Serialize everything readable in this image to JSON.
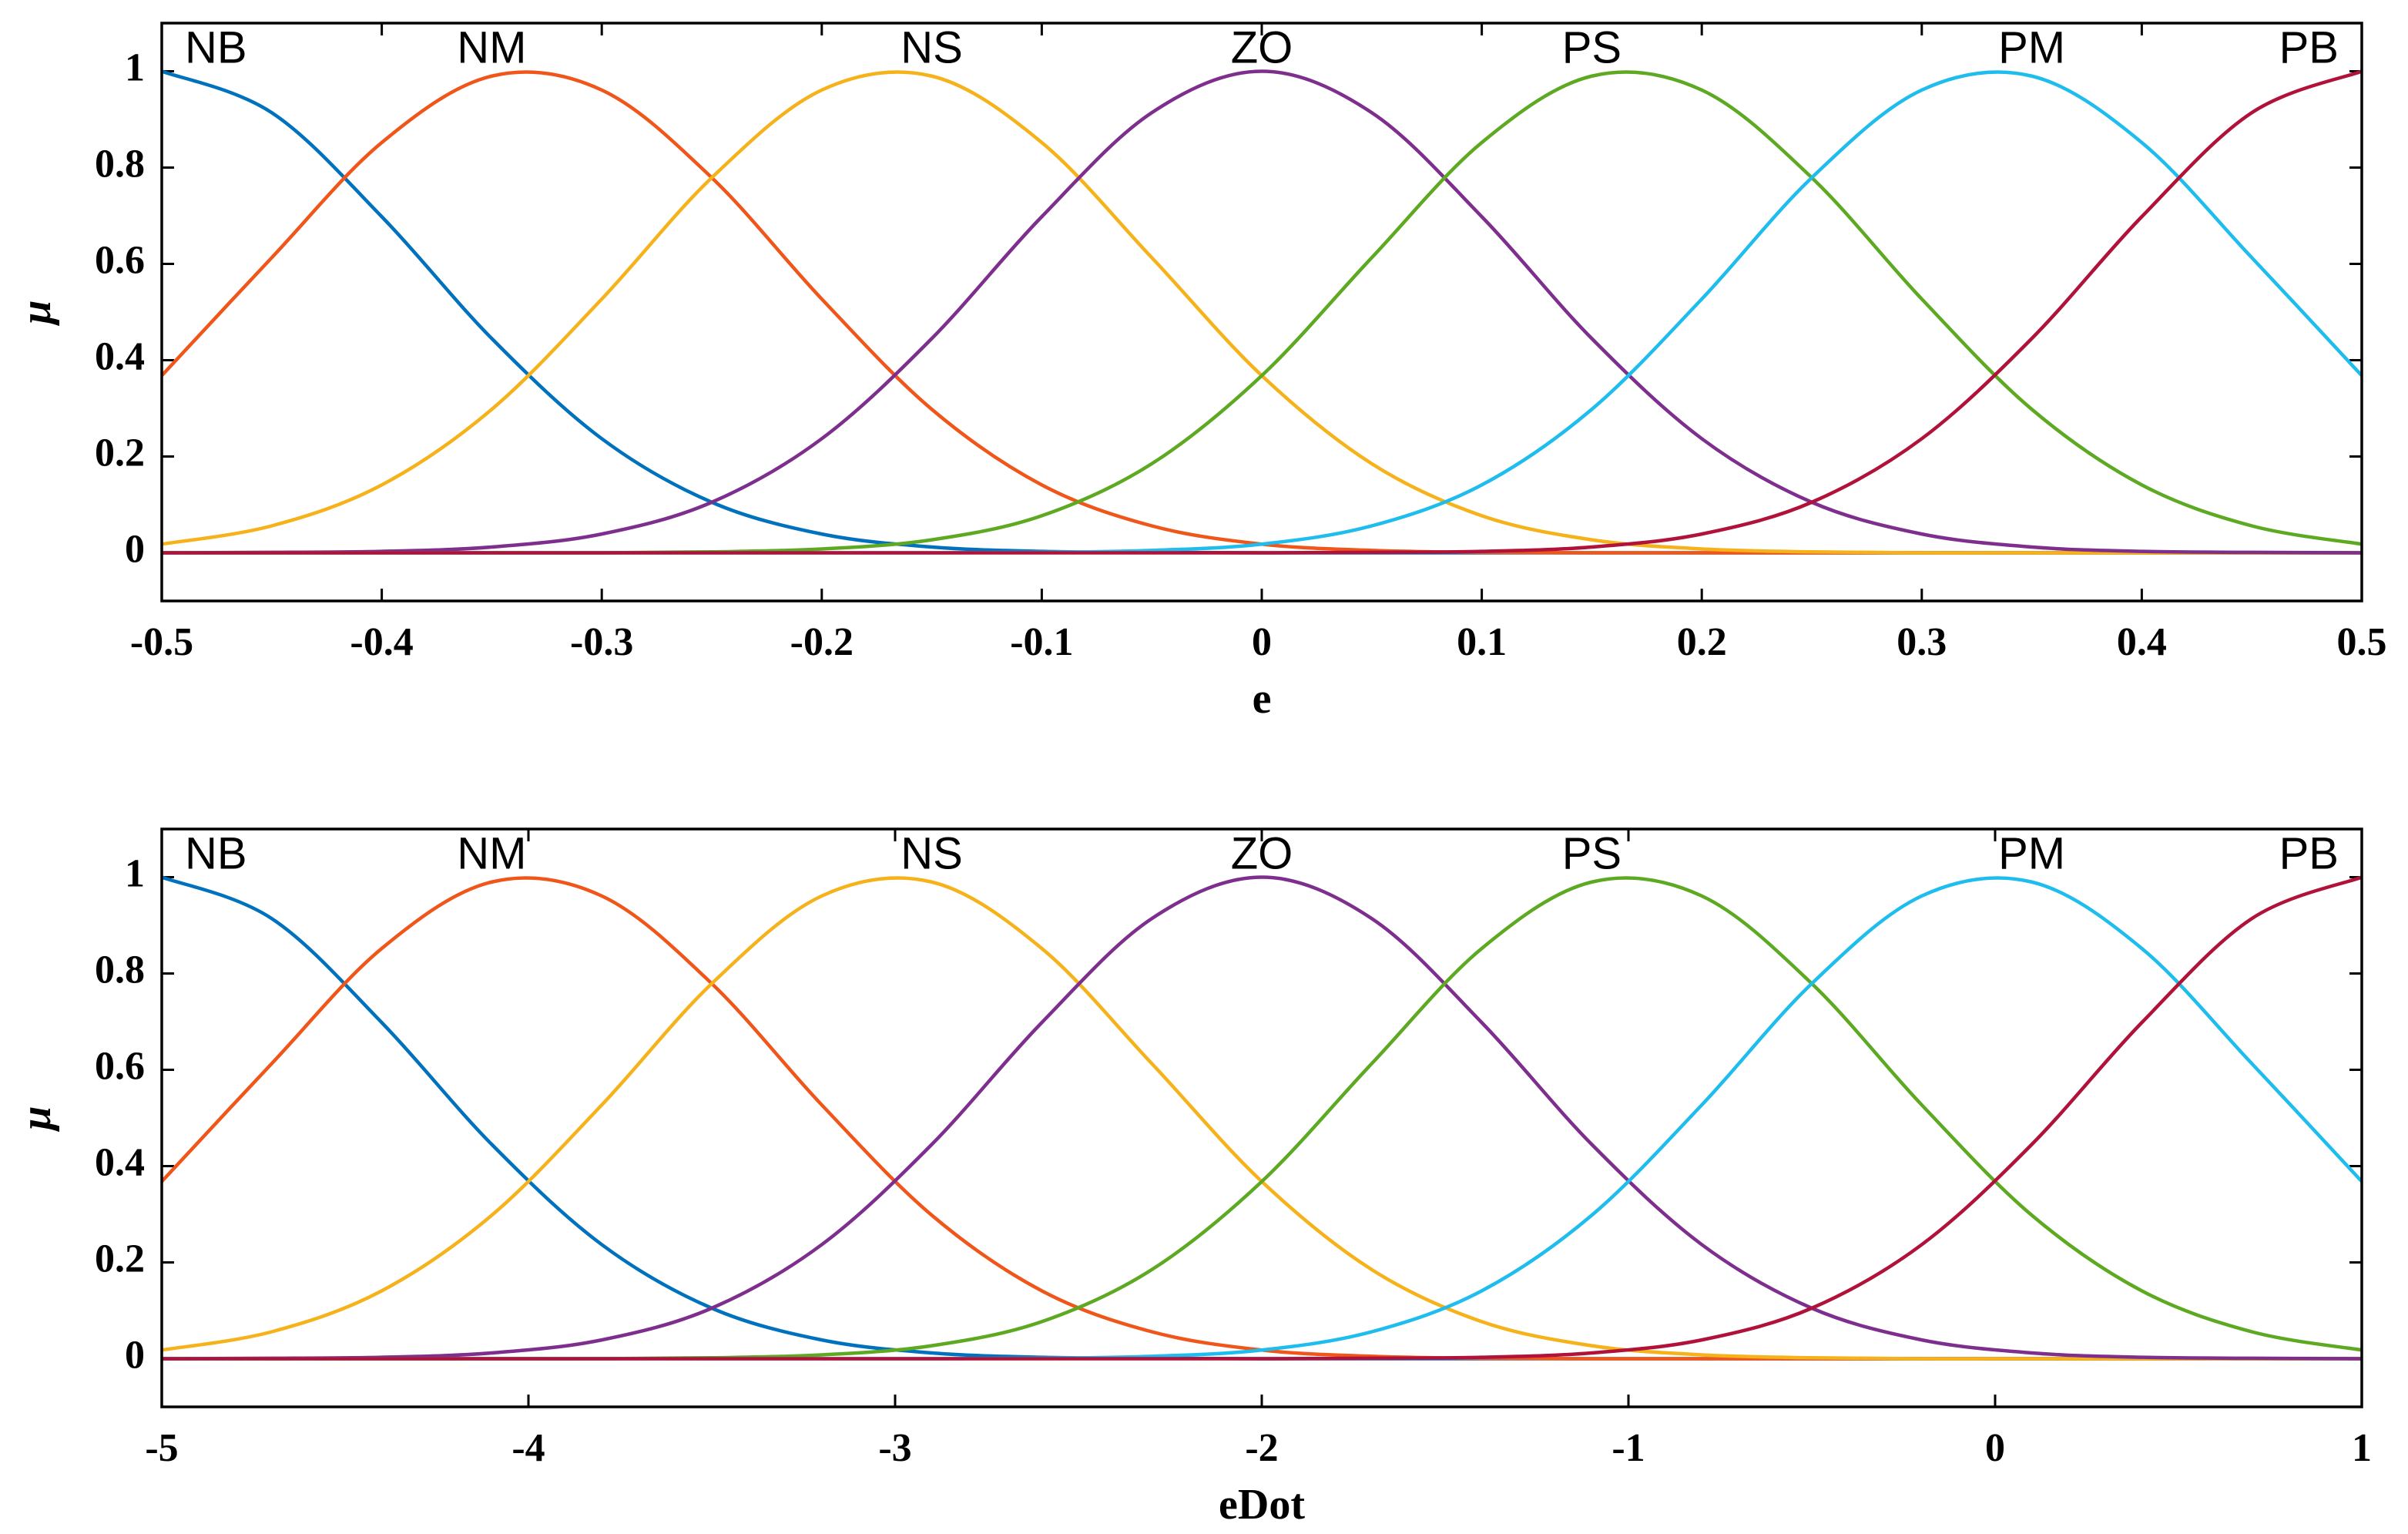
{
  "chart_data": [
    {
      "type": "line",
      "xlabel": "e",
      "ylabel": "μ",
      "x": [
        -0.5,
        -0.45,
        -0.4,
        -0.35,
        -0.3,
        -0.25,
        -0.2,
        -0.15,
        -0.1,
        -0.05,
        0,
        0.05,
        0.1,
        0.15,
        0.2,
        0.25,
        0.3,
        0.35,
        0.4,
        0.45,
        0.5
      ],
      "xlim": [
        -0.5,
        0.5
      ],
      "ylim": [
        -0.1,
        1.1
      ],
      "xticks": [
        -0.5,
        -0.4,
        -0.3,
        -0.2,
        -0.1,
        0,
        0.1,
        0.2,
        0.3,
        0.4,
        0.5
      ],
      "yticks": [
        0,
        0.2,
        0.4,
        0.6,
        0.8,
        1
      ],
      "series": [
        {
          "name": "NB",
          "color": "#0072BD",
          "values": [
            1,
            0.914,
            0.698,
            0.445,
            0.237,
            0.105,
            0.039,
            0.012,
            0.003,
            0.001,
            0,
            0,
            0,
            0,
            0,
            0,
            0,
            0,
            0,
            0,
            0
          ]
        },
        {
          "name": "NM",
          "color": "#F0561A",
          "values": [
            0.368,
            0.613,
            0.852,
            0.99,
            0.961,
            0.779,
            0.527,
            0.298,
            0.141,
            0.056,
            0.018,
            0.005,
            0.001,
            0,
            0,
            0,
            0,
            0,
            0,
            0,
            0
          ]
        },
        {
          "name": "NS",
          "color": "#F5B21A",
          "values": [
            0.018,
            0.056,
            0.141,
            0.298,
            0.527,
            0.779,
            0.961,
            0.99,
            0.852,
            0.613,
            0.368,
            0.185,
            0.077,
            0.027,
            0.008,
            0.002,
            0,
            0,
            0,
            0,
            0
          ]
        },
        {
          "name": "ZO",
          "color": "#7E2F8E",
          "values": [
            0,
            0.001,
            0.003,
            0.012,
            0.039,
            0.105,
            0.237,
            0.445,
            0.698,
            0.914,
            1,
            0.914,
            0.698,
            0.445,
            0.237,
            0.105,
            0.039,
            0.012,
            0.003,
            0.001,
            0
          ]
        },
        {
          "name": "PS",
          "color": "#5DA922",
          "values": [
            0,
            0,
            0,
            0,
            0,
            0.002,
            0.008,
            0.027,
            0.077,
            0.185,
            0.368,
            0.613,
            0.852,
            0.99,
            0.961,
            0.779,
            0.527,
            0.298,
            0.141,
            0.056,
            0.018
          ]
        },
        {
          "name": "PM",
          "color": "#1EBDED",
          "values": [
            0,
            0,
            0,
            0,
            0,
            0,
            0,
            0,
            0.001,
            0.005,
            0.018,
            0.056,
            0.141,
            0.298,
            0.527,
            0.779,
            0.961,
            0.99,
            0.852,
            0.613,
            0.368
          ]
        },
        {
          "name": "PB",
          "color": "#B0123A",
          "values": [
            0,
            0,
            0,
            0,
            0,
            0,
            0,
            0,
            0,
            0,
            0,
            0.001,
            0.003,
            0.012,
            0.039,
            0.105,
            0.237,
            0.445,
            0.698,
            0.914,
            1
          ]
        }
      ]
    },
    {
      "type": "line",
      "xlabel": "eDot",
      "ylabel": "μ",
      "x": [
        -5,
        -4.7,
        -4.4,
        -4.1,
        -3.8,
        -3.5,
        -3.2,
        -2.9,
        -2.6,
        -2.3,
        -2,
        -1.7,
        -1.4,
        -1.1,
        -0.8,
        -0.5,
        -0.2,
        0.1,
        0.4,
        0.7,
        1
      ],
      "xlim": [
        -5,
        1
      ],
      "ylim": [
        -0.1,
        1.1
      ],
      "xticks": [
        -5,
        -4,
        -3,
        -2,
        -1,
        0,
        1
      ],
      "yticks": [
        0,
        0.2,
        0.4,
        0.6,
        0.8,
        1
      ],
      "series": [
        {
          "name": "NB",
          "color": "#0072BD",
          "values": [
            1,
            0.914,
            0.698,
            0.445,
            0.237,
            0.105,
            0.039,
            0.012,
            0.003,
            0.001,
            0,
            0,
            0,
            0,
            0,
            0,
            0,
            0,
            0,
            0,
            0
          ]
        },
        {
          "name": "NM",
          "color": "#F0561A",
          "values": [
            0.368,
            0.613,
            0.852,
            0.99,
            0.961,
            0.779,
            0.527,
            0.298,
            0.141,
            0.056,
            0.018,
            0.005,
            0.001,
            0,
            0,
            0,
            0,
            0,
            0,
            0,
            0
          ]
        },
        {
          "name": "NS",
          "color": "#F5B21A",
          "values": [
            0.018,
            0.056,
            0.141,
            0.298,
            0.527,
            0.779,
            0.961,
            0.99,
            0.852,
            0.613,
            0.368,
            0.185,
            0.077,
            0.027,
            0.008,
            0.002,
            0,
            0,
            0,
            0,
            0
          ]
        },
        {
          "name": "ZO",
          "color": "#7E2F8E",
          "values": [
            0,
            0.001,
            0.003,
            0.012,
            0.039,
            0.105,
            0.237,
            0.445,
            0.698,
            0.914,
            1,
            0.914,
            0.698,
            0.445,
            0.237,
            0.105,
            0.039,
            0.012,
            0.003,
            0.001,
            0
          ]
        },
        {
          "name": "PS",
          "color": "#5DA922",
          "values": [
            0,
            0,
            0,
            0,
            0,
            0.002,
            0.008,
            0.027,
            0.077,
            0.185,
            0.368,
            0.613,
            0.852,
            0.99,
            0.961,
            0.779,
            0.527,
            0.298,
            0.141,
            0.056,
            0.018
          ]
        },
        {
          "name": "PM",
          "color": "#1EBDED",
          "values": [
            0,
            0,
            0,
            0,
            0,
            0,
            0,
            0,
            0.001,
            0.005,
            0.018,
            0.056,
            0.141,
            0.298,
            0.527,
            0.779,
            0.961,
            0.99,
            0.852,
            0.613,
            0.368
          ]
        },
        {
          "name": "PB",
          "color": "#B0123A",
          "values": [
            0,
            0,
            0,
            0,
            0,
            0,
            0,
            0,
            0,
            0,
            0,
            0.001,
            0.003,
            0.012,
            0.039,
            0.105,
            0.237,
            0.445,
            0.698,
            0.914,
            1
          ]
        }
      ]
    }
  ]
}
